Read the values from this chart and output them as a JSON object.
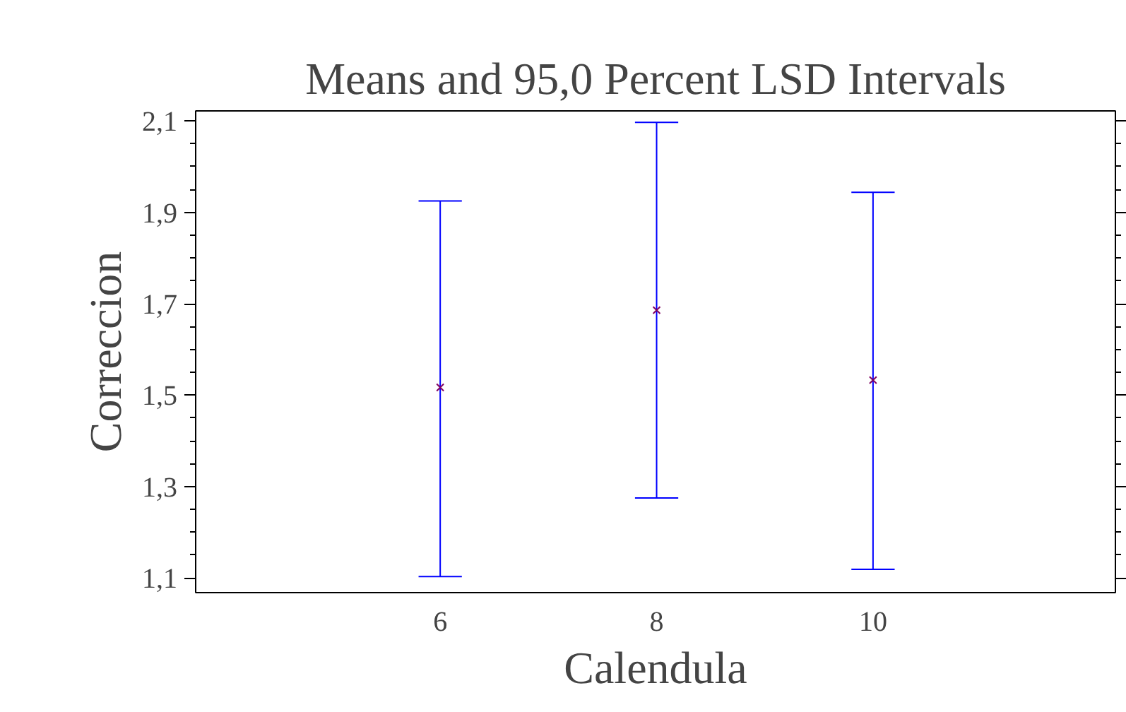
{
  "chart_data": {
    "type": "scatter",
    "title": "Means and 95,0 Percent LSD Intervals",
    "xlabel": "Calendula",
    "ylabel": "Correccion",
    "categories": [
      "6",
      "8",
      "10"
    ],
    "series": [
      {
        "color": "#800060",
        "values": [
          1.517,
          1.686,
          1.533
        ],
        "errors": [
          [
            1.103,
            1.925
          ],
          [
            1.275,
            2.097
          ],
          [
            1.119,
            1.944
          ]
        ]
      }
    ],
    "ylim": [
      1.068,
      2.122
    ],
    "yticks": [
      {
        "value": 1.1,
        "label": "1,1"
      },
      {
        "value": 1.3,
        "label": "1,3"
      },
      {
        "value": 1.5,
        "label": "1,5"
      },
      {
        "value": 1.7,
        "label": "1,7"
      },
      {
        "value": 1.9,
        "label": "1,9"
      },
      {
        "value": 2.1,
        "label": "2,1"
      }
    ],
    "marker": "cross"
  }
}
